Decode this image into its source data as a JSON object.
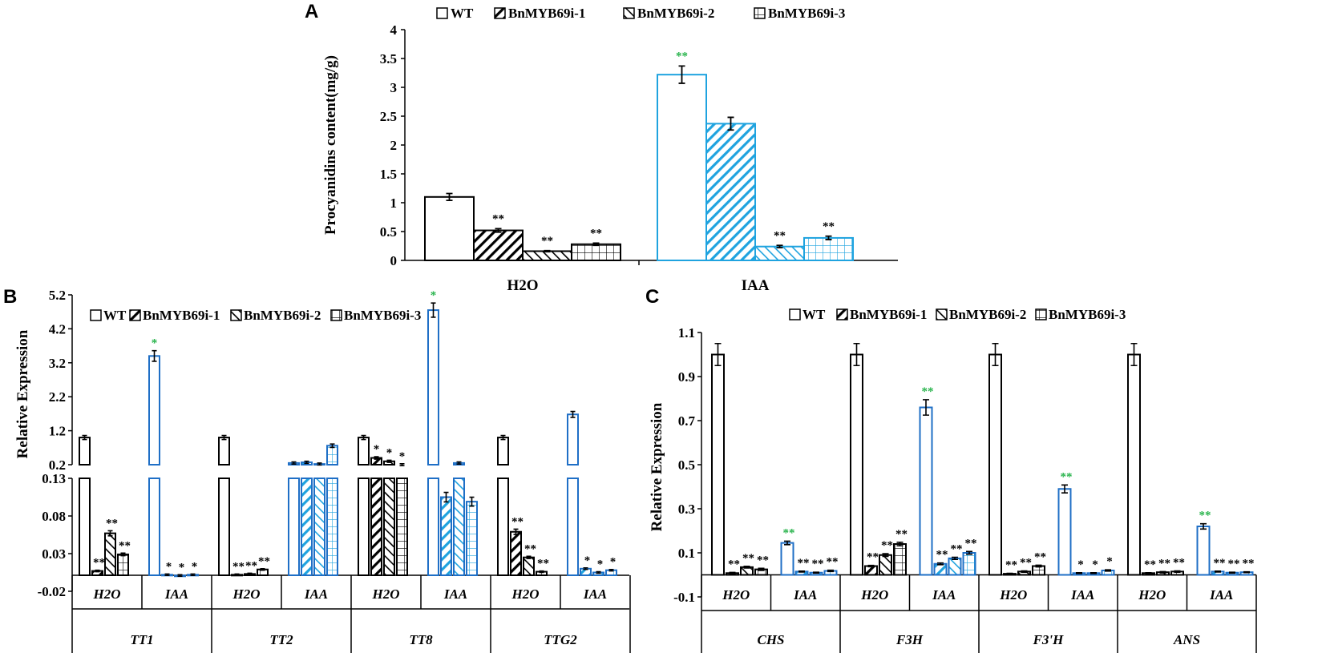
{
  "colors": {
    "black": "#000000",
    "blue": "#1fa3df",
    "blue_b": "#1f6fc6",
    "green": "#27b34b"
  },
  "chart_data": [
    {
      "panel": "A",
      "type": "bar",
      "ylabel": "Procyanidins content(mg/g)",
      "ylim": [
        0,
        4
      ],
      "yticks": [
        "0",
        "0.5",
        "1",
        "1.5",
        "2",
        "2.5",
        "3",
        "3.5",
        "4"
      ],
      "categories": [
        "H2O",
        "IAA"
      ],
      "legend": [
        "WT",
        "BnMYB69i-1",
        "BnMYB69i-2",
        "BnMYB69i-3"
      ],
      "series": [
        {
          "name": "WT",
          "values": [
            1.1,
            3.22
          ],
          "errors": [
            0.06,
            0.15
          ],
          "sig": [
            "",
            "**"
          ]
        },
        {
          "name": "BnMYB69i-1",
          "values": [
            0.52,
            2.37
          ],
          "errors": [
            0.03,
            0.11
          ],
          "sig": [
            "**",
            ""
          ]
        },
        {
          "name": "BnMYB69i-2",
          "values": [
            0.16,
            0.24
          ],
          "errors": [
            0.01,
            0.02
          ],
          "sig": [
            "**",
            "**"
          ]
        },
        {
          "name": "BnMYB69i-3",
          "values": [
            0.28,
            0.39
          ],
          "errors": [
            0.02,
            0.03
          ],
          "sig": [
            "**",
            "**"
          ]
        }
      ]
    },
    {
      "panel": "B",
      "type": "bar",
      "ylabel": "Relative Expression",
      "yticks_upper": [
        "0.2",
        "1.2",
        "2.2",
        "3.2",
        "4.2",
        "5.2"
      ],
      "yticks_lower": [
        "-0.02",
        "0.03",
        "0.08",
        "0.13"
      ],
      "ylim_upper": [
        0.2,
        5.2
      ],
      "ylim_lower": [
        -0.02,
        0.13
      ],
      "legend": [
        "WT",
        "BnMYB69i-1",
        "BnMYB69i-2",
        "BnMYB69i-3"
      ],
      "genes": [
        "TT1",
        "TT2",
        "TT8",
        "TTG2"
      ],
      "treatments": [
        "H2O",
        "IAA"
      ],
      "groups": [
        {
          "gene": "TT1",
          "treatment": "H2O",
          "values": [
            1.0,
            0.007,
            0.057,
            0.029
          ],
          "sig": [
            "",
            "**",
            "**",
            "**"
          ]
        },
        {
          "gene": "TT1",
          "treatment": "IAA",
          "values": [
            3.4,
            0.002,
            0.001,
            0.002
          ],
          "sig": [
            "*",
            "*",
            "*",
            "*"
          ]
        },
        {
          "gene": "TT2",
          "treatment": "H2O",
          "values": [
            1.0,
            0.002,
            0.003,
            0.009
          ],
          "sig": [
            "",
            "**",
            "**",
            "**"
          ]
        },
        {
          "gene": "TT2",
          "treatment": "IAA",
          "values": [
            0.25,
            0.27,
            0.22,
            0.76
          ],
          "sig": [
            "",
            "",
            "",
            ""
          ]
        },
        {
          "gene": "TT8",
          "treatment": "H2O",
          "values": [
            1.0,
            0.4,
            0.3,
            0.2
          ],
          "sig": [
            "",
            "*",
            "*",
            "*"
          ]
        },
        {
          "gene": "TT8",
          "treatment": "IAA",
          "values": [
            4.75,
            0.105,
            0.25,
            0.099
          ],
          "sig": [
            "*",
            "",
            "",
            ""
          ]
        },
        {
          "gene": "TTG2",
          "treatment": "H2O",
          "values": [
            1.0,
            0.059,
            0.025,
            0.006
          ],
          "sig": [
            "",
            "**",
            "**",
            "**"
          ]
        },
        {
          "gene": "TTG2",
          "treatment": "IAA",
          "values": [
            1.68,
            0.01,
            0.005,
            0.008
          ],
          "sig": [
            "",
            "*",
            "*",
            "*"
          ]
        }
      ]
    },
    {
      "panel": "C",
      "type": "bar",
      "ylabel": "Relative Expression",
      "ylim": [
        -0.1,
        1.1
      ],
      "yticks": [
        "-0.1",
        "0.1",
        "0.3",
        "0.5",
        "0.7",
        "0.9",
        "1.1"
      ],
      "legend": [
        "WT",
        "BnMYB69i-1",
        "BnMYB69i-2",
        "BnMYB69i-3"
      ],
      "genes": [
        "CHS",
        "F3H",
        "F3'H",
        "ANS"
      ],
      "treatments": [
        "H2O",
        "IAA"
      ],
      "groups": [
        {
          "gene": "CHS",
          "treatment": "H2O",
          "values": [
            1.0,
            0.008,
            0.035,
            0.025
          ],
          "errors": [
            0.05,
            0.003,
            0.004,
            0.005
          ],
          "sig": [
            "",
            "**",
            "**",
            "**"
          ]
        },
        {
          "gene": "CHS",
          "treatment": "IAA",
          "values": [
            0.145,
            0.015,
            0.01,
            0.018
          ],
          "errors": [
            0.008,
            0.002,
            0.002,
            0.003
          ],
          "sig": [
            "**",
            "**",
            "**",
            "**"
          ]
        },
        {
          "gene": "F3H",
          "treatment": "H2O",
          "values": [
            1.0,
            0.04,
            0.09,
            0.14
          ],
          "errors": [
            0.05,
            0.003,
            0.006,
            0.008
          ],
          "sig": [
            "",
            "**",
            "**",
            "**"
          ]
        },
        {
          "gene": "F3H",
          "treatment": "IAA",
          "values": [
            0.76,
            0.05,
            0.075,
            0.1
          ],
          "errors": [
            0.035,
            0.004,
            0.005,
            0.006
          ],
          "sig": [
            "**",
            "**",
            "**",
            "**"
          ]
        },
        {
          "gene": "F3'H",
          "treatment": "H2O",
          "values": [
            1.0,
            0.005,
            0.015,
            0.04
          ],
          "errors": [
            0.05,
            0.002,
            0.003,
            0.004
          ],
          "sig": [
            "",
            "**",
            "**",
            "**"
          ]
        },
        {
          "gene": "F3'H",
          "treatment": "IAA",
          "values": [
            0.39,
            0.008,
            0.008,
            0.02
          ],
          "errors": [
            0.018,
            0.002,
            0.002,
            0.003
          ],
          "sig": [
            "**",
            "*",
            "*",
            "*"
          ]
        },
        {
          "gene": "ANS",
          "treatment": "H2O",
          "values": [
            1.0,
            0.008,
            0.012,
            0.015
          ],
          "errors": [
            0.05,
            0.002,
            0.003,
            0.003
          ],
          "sig": [
            "",
            "**",
            "**",
            "**"
          ]
        },
        {
          "gene": "ANS",
          "treatment": "IAA",
          "values": [
            0.22,
            0.015,
            0.01,
            0.012
          ],
          "errors": [
            0.012,
            0.002,
            0.002,
            0.002
          ],
          "sig": [
            "**",
            "**",
            "**",
            "**"
          ]
        }
      ]
    }
  ]
}
